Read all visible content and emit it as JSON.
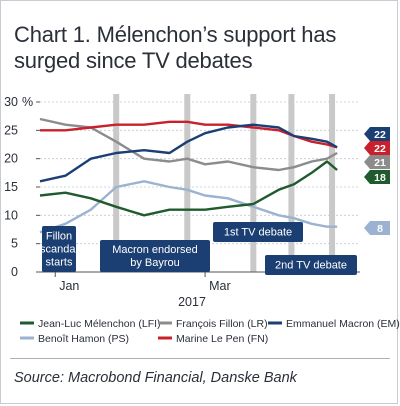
{
  "header": {
    "title_line1": "Chart 1. Mélenchon’s support has",
    "title_line2": "surged since TV debates"
  },
  "source": "Source: Macrobond Financial, Danske Bank",
  "colors": {
    "melenchon": "#1f5b2e",
    "fillon": "#8c8c8c",
    "macron": "#1b3f73",
    "hamon": "#9bb3d0",
    "lepen": "#c8202d",
    "annotation_bg": "#1b3f73",
    "event_band": "#c9c9c9"
  },
  "chart_data": {
    "type": "line",
    "x_range": [
      "2016-12-26",
      "2017-05-01"
    ],
    "ylim": [
      0,
      30
    ],
    "yticks": [
      0,
      5,
      10,
      15,
      20,
      25,
      30
    ],
    "ytick_labels": [
      "0",
      "5",
      "10",
      "15",
      "20",
      "25",
      "30"
    ],
    "y_unit": "%",
    "x_tick_labels": [
      {
        "label": "Jan",
        "date": "2017-01-01"
      },
      {
        "label": "Mar",
        "date": "2017-03-01"
      }
    ],
    "x_year_label": "2017",
    "grid": true,
    "legend_position": "bottom",
    "event_markers": [
      "2017-01-25",
      "2017-02-22",
      "2017-03-20",
      "2017-04-04",
      "2017-04-20"
    ],
    "annotations": [
      {
        "text": [
          "Fillon",
          "scandal",
          "starts"
        ]
      },
      {
        "text": [
          "Macron endorsed",
          "by Bayrou"
        ]
      },
      {
        "text": [
          "1st TV debate"
        ]
      },
      {
        "text": [
          "2nd TV debate"
        ]
      }
    ],
    "end_labels": [
      {
        "series": "Emmanuel Macron (EM)",
        "value": 22,
        "label": "22"
      },
      {
        "series": "Marine Le Pen (FN)",
        "value": 22,
        "label": "22"
      },
      {
        "series": "François Fillon (LR)",
        "value": 21,
        "label": "21"
      },
      {
        "series": "Jean-Luc Mélenchon (LFI)",
        "value": 18,
        "label": "18"
      },
      {
        "series": "Benoît Hamon (PS)",
        "value": 8,
        "label": "8"
      }
    ],
    "series": [
      {
        "name": "Jean-Luc Mélenchon (LFI)",
        "x": [
          "2016-12-26",
          "2017-01-05",
          "2017-01-15",
          "2017-01-25",
          "2017-02-05",
          "2017-02-15",
          "2017-02-22",
          "2017-03-01",
          "2017-03-10",
          "2017-03-20",
          "2017-03-30",
          "2017-04-05",
          "2017-04-12",
          "2017-04-18",
          "2017-04-22"
        ],
        "values": [
          13.5,
          14,
          13,
          11.5,
          10,
          11,
          11,
          11,
          11.5,
          12,
          14.5,
          15.5,
          17.5,
          19.5,
          18
        ]
      },
      {
        "name": "François Fillon (LR)",
        "x": [
          "2016-12-26",
          "2017-01-05",
          "2017-01-15",
          "2017-01-25",
          "2017-02-05",
          "2017-02-15",
          "2017-02-22",
          "2017-03-01",
          "2017-03-10",
          "2017-03-20",
          "2017-03-30",
          "2017-04-05",
          "2017-04-12",
          "2017-04-18",
          "2017-04-22"
        ],
        "values": [
          27,
          26,
          25.5,
          23,
          20,
          19.5,
          20,
          19,
          19.5,
          18.5,
          18,
          18.5,
          19.5,
          20,
          21
        ]
      },
      {
        "name": "Emmanuel Macron (EM)",
        "x": [
          "2016-12-26",
          "2017-01-05",
          "2017-01-15",
          "2017-01-25",
          "2017-02-05",
          "2017-02-15",
          "2017-02-22",
          "2017-03-01",
          "2017-03-10",
          "2017-03-20",
          "2017-03-30",
          "2017-04-05",
          "2017-04-12",
          "2017-04-18",
          "2017-04-22"
        ],
        "values": [
          16,
          17,
          20,
          21,
          21.5,
          21,
          23,
          24.5,
          25.5,
          26,
          25.5,
          24,
          23.5,
          23,
          22
        ]
      },
      {
        "name": "Benoît Hamon (PS)",
        "x": [
          "2016-12-26",
          "2017-01-05",
          "2017-01-15",
          "2017-01-25",
          "2017-02-05",
          "2017-02-15",
          "2017-02-22",
          "2017-03-01",
          "2017-03-10",
          "2017-03-20",
          "2017-03-30",
          "2017-04-05",
          "2017-04-12",
          "2017-04-18",
          "2017-04-22"
        ],
        "values": [
          7,
          8.5,
          11,
          15,
          16,
          15,
          14.5,
          13.5,
          13,
          11.5,
          10,
          9.5,
          8.5,
          8,
          8
        ]
      },
      {
        "name": "Marine Le Pen (FN)",
        "x": [
          "2016-12-26",
          "2017-01-05",
          "2017-01-15",
          "2017-01-25",
          "2017-02-05",
          "2017-02-15",
          "2017-02-22",
          "2017-03-01",
          "2017-03-10",
          "2017-03-20",
          "2017-03-30",
          "2017-04-05",
          "2017-04-12",
          "2017-04-18",
          "2017-04-22"
        ],
        "values": [
          25,
          25,
          25.5,
          26,
          26,
          26.5,
          26.5,
          26,
          26,
          25.5,
          25,
          24,
          23,
          22.5,
          22
        ]
      }
    ]
  }
}
